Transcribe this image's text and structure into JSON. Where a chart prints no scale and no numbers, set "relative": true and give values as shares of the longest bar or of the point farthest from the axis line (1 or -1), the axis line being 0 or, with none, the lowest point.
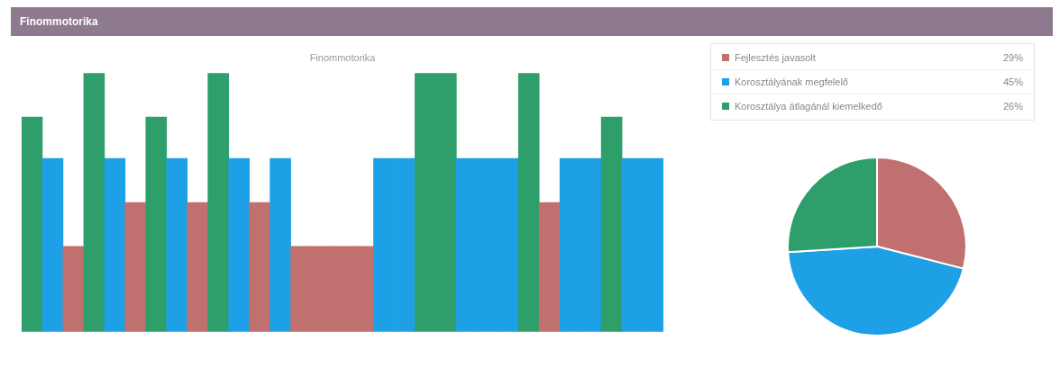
{
  "chart_data": [
    {
      "type": "bar",
      "title": "Finommotorika",
      "subtitle": "Finommotorika",
      "relative": true,
      "categories": [
        null,
        null,
        null,
        null,
        null,
        null,
        null,
        null,
        null,
        null,
        null,
        null,
        null,
        null,
        null,
        null,
        null,
        null,
        null,
        null,
        null,
        null,
        null,
        null,
        null,
        null,
        null,
        null,
        null,
        null,
        null
      ],
      "grid": false,
      "values": [
        0.83,
        0.67,
        0.33,
        1,
        0.67,
        0.5,
        0.83,
        0.67,
        0.5,
        1,
        0.67,
        0.5,
        0.67,
        0.33,
        0.33,
        0.33,
        0.33,
        0.67,
        0.67,
        1,
        1,
        0.67,
        0.67,
        0.67,
        1,
        0.5,
        0.67,
        0.67,
        0.83,
        0.67,
        0.67
      ],
      "colors": [
        "#2e9e6b",
        "#1ea0e6",
        "#c0706e",
        "#2e9e6b",
        "#1ea0e6",
        "#c0706e",
        "#2e9e6b",
        "#1ea0e6",
        "#c0706e",
        "#2e9e6b",
        "#1ea0e6",
        "#c0706e",
        "#1ea0e6",
        "#c0706e",
        "#c0706e",
        "#c0706e",
        "#c0706e",
        "#1ea0e6",
        "#1ea0e6",
        "#2e9e6b",
        "#2e9e6b",
        "#1ea0e6",
        "#1ea0e6",
        "#1ea0e6",
        "#2e9e6b",
        "#c0706e",
        "#1ea0e6",
        "#1ea0e6",
        "#2e9e6b",
        "#1ea0e6",
        "#1ea0e6"
      ]
    },
    {
      "type": "pie",
      "categories": [
        "Fejlesztés javasolt",
        "Korosztályának megfelelő",
        "Korosztálya átlagánál kiemelkedő"
      ],
      "values": [
        29,
        45,
        26
      ],
      "colors": [
        "#c0706e",
        "#1ea0e6",
        "#2e9e6b"
      ],
      "value_labels": [
        "29%",
        "45%",
        "26%"
      ],
      "legend": "top"
    }
  ]
}
